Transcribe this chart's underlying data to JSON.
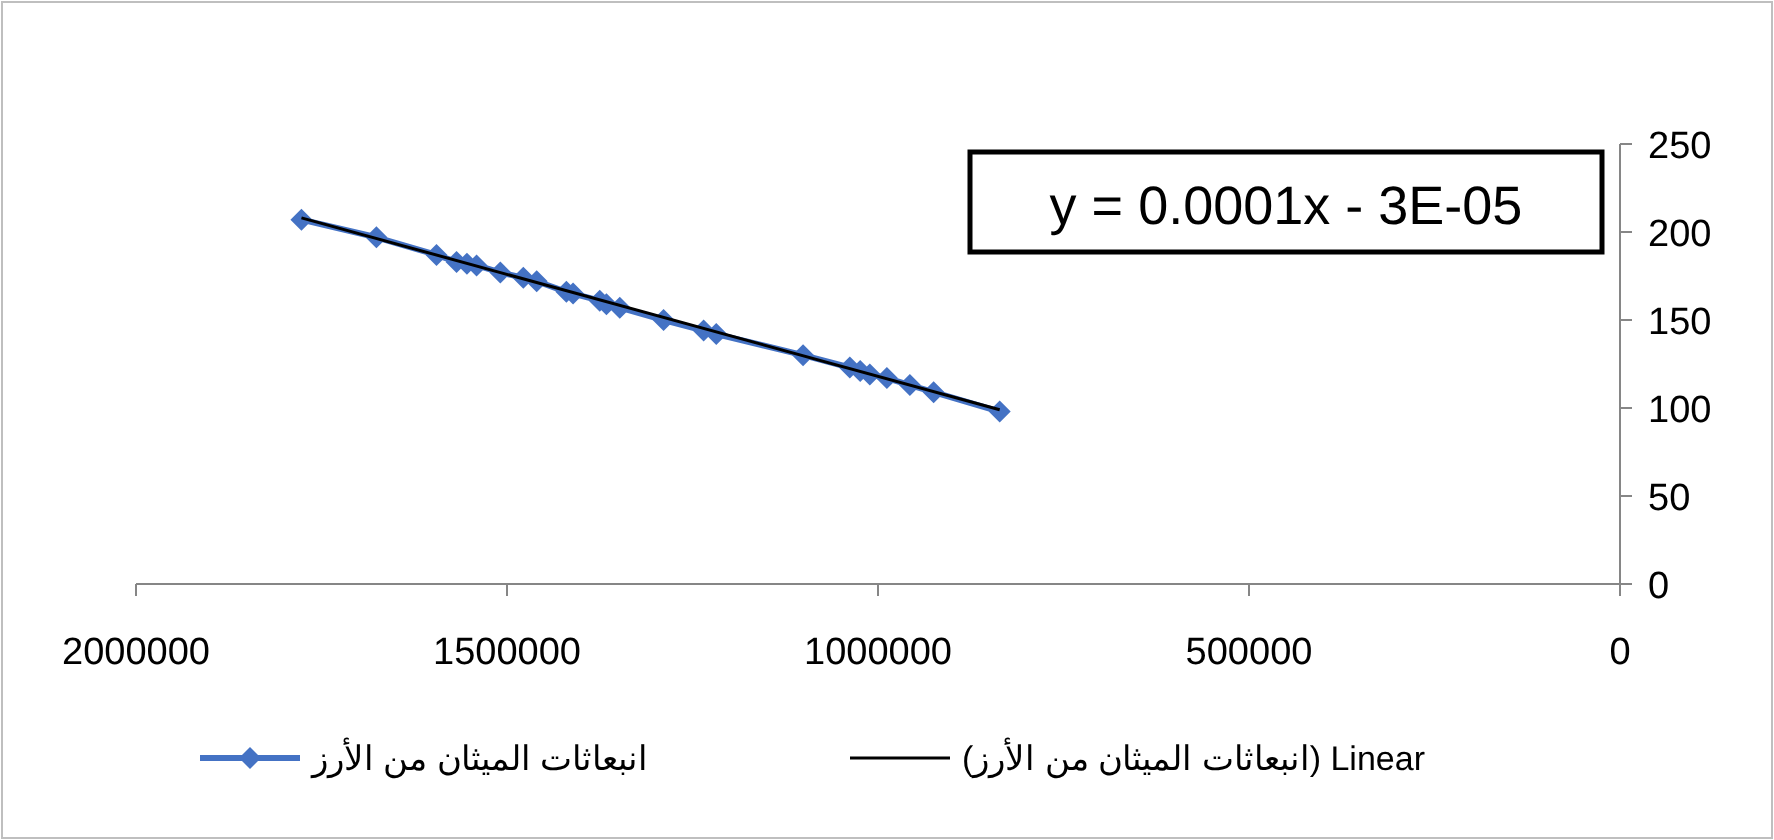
{
  "chart_data": {
    "type": "line",
    "x": [
      1777000,
      1676000,
      1595000,
      1568000,
      1554000,
      1541000,
      1509000,
      1478000,
      1460000,
      1420000,
      1411000,
      1375000,
      1366000,
      1348000,
      1289000,
      1235000,
      1218000,
      1101000,
      1038000,
      1024000,
      1011000,
      988000,
      957000,
      925000,
      836000
    ],
    "series": [
      {
        "name": "انبعاثات الميثان من الأرز",
        "color": "#4472c4",
        "marker": "diamond",
        "values": [
          207,
          197,
          187,
          183,
          182,
          181,
          177,
          174,
          172,
          166,
          165,
          161,
          159,
          157,
          150,
          144,
          142,
          130,
          123,
          121,
          119,
          117,
          113,
          109,
          98
        ]
      },
      {
        "name": "Linear (انبعاثات الميثان من الأرز)",
        "color": "#000000",
        "marker": "none",
        "x": [
          1777000,
          836000
        ],
        "values": [
          208,
          99
        ]
      }
    ],
    "xlim": [
      2000000,
      0
    ],
    "xticks": [
      2000000,
      1500000,
      1000000,
      500000,
      0
    ],
    "ylim": [
      0,
      250
    ],
    "yticks": [
      0,
      50,
      100,
      150,
      200,
      250
    ],
    "annotations": [
      "y = 0.0001x - 3E-05"
    ],
    "legend": "bottom",
    "grid": false
  }
}
